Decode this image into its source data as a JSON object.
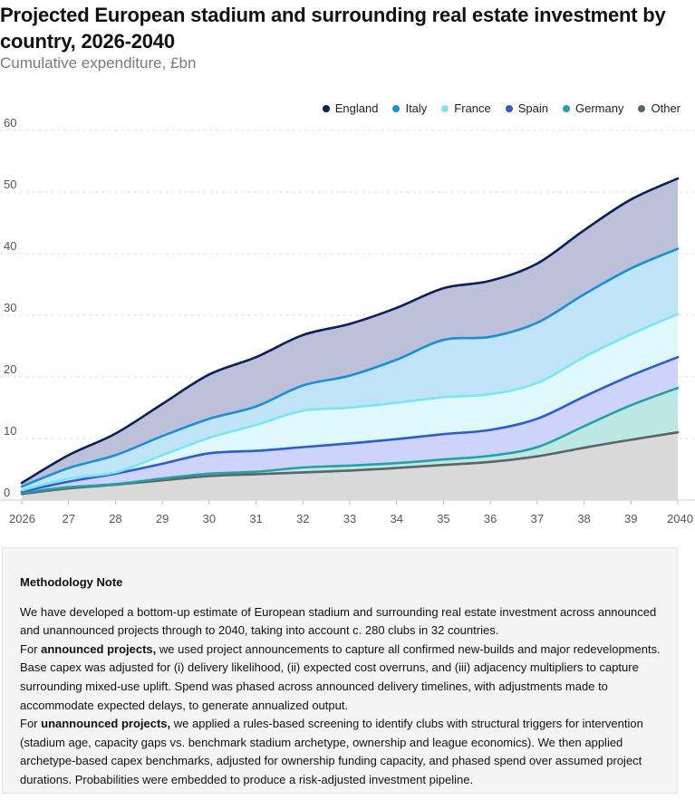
{
  "chart_data": {
    "type": "area",
    "title": "Projected European stadium and surrounding real estate investment by country, 2026-2040",
    "subtitle": "Cumulative expenditure, £bn",
    "x": [
      "2026",
      "27",
      "28",
      "29",
      "30",
      "31",
      "32",
      "33",
      "34",
      "35",
      "36",
      "37",
      "38",
      "39",
      "2040"
    ],
    "yticks": [
      "0",
      "10",
      "20",
      "30",
      "40",
      "50",
      "60"
    ],
    "ylim": [
      0,
      60
    ],
    "stacked_cumulative_top_values": true,
    "grid": true,
    "legend_position": "top-right",
    "series": [
      {
        "name": "England",
        "color": "#0d1e5c",
        "fill": "#bcc1d9",
        "values": [
          2.8,
          7.3,
          10.8,
          15.6,
          20.4,
          23.2,
          26.8,
          28.6,
          31.2,
          34.4,
          35.6,
          38.4,
          43.8,
          48.8,
          52.2
        ]
      },
      {
        "name": "Italy",
        "color": "#1b8fd6",
        "fill": "#bfe4f8",
        "values": [
          2.2,
          5.2,
          7.3,
          10.4,
          13.2,
          15.2,
          18.6,
          20.2,
          22.8,
          26.0,
          26.5,
          28.8,
          33.4,
          37.6,
          40.8
        ]
      },
      {
        "name": "France",
        "color": "#7ae6ee",
        "fill": "#dff8fb",
        "values": [
          1.6,
          3.5,
          4.5,
          7.3,
          10.1,
          12.2,
          14.5,
          15.0,
          15.8,
          16.7,
          17.2,
          19.0,
          23.2,
          26.9,
          30.2
        ]
      },
      {
        "name": "Spain",
        "color": "#2a5bdc",
        "fill": "#cdd3fb",
        "values": [
          1.4,
          3.0,
          4.3,
          5.9,
          7.6,
          8.0,
          8.6,
          9.2,
          9.9,
          10.7,
          11.4,
          13.2,
          16.8,
          20.2,
          23.2
        ]
      },
      {
        "name": "Germany",
        "color": "#20a3a3",
        "fill": "#bce7e3",
        "values": [
          1.2,
          2.1,
          2.6,
          3.5,
          4.3,
          4.6,
          5.3,
          5.6,
          6.0,
          6.6,
          7.2,
          8.6,
          12.0,
          15.4,
          18.2
        ]
      },
      {
        "name": "Other",
        "color": "#5d6466",
        "fill": "#d9d9d9",
        "values": [
          1.0,
          1.9,
          2.5,
          3.2,
          3.9,
          4.2,
          4.5,
          4.8,
          5.2,
          5.7,
          6.2,
          7.1,
          8.5,
          9.8,
          11.0
        ]
      }
    ]
  },
  "legend": [
    "England",
    "Italy",
    "France",
    "Spain",
    "Germany",
    "Other"
  ],
  "note": {
    "title": "Methodology Note",
    "p1": "We have developed a bottom-up estimate of European stadium and surrounding real estate investment across announced and unannounced projects through to 2040, taking into account c. 280 clubs in 32 countries.",
    "p2_prefix": "For ",
    "p2_bold": "announced projects,",
    "p2_rest": " we used project announcements to capture all confirmed new-builds and major redevelopments. Base capex was adjusted for (i) delivery likelihood, (ii) expected cost overruns, and (iii) adjacency multipliers to capture surrounding mixed-use uplift. Spend was phased across announced delivery timelines, with adjustments made to accommodate expected delays, to generate annualized output.",
    "p3_prefix": "For ",
    "p3_bold": "unannounced projects,",
    "p3_rest": " we applied a rules-based screening to identify clubs with structural triggers for intervention (stadium age, capacity gaps vs. benchmark stadium archetype, ownership and league economics). We then applied archetype-based capex benchmarks, adjusted for ownership funding capacity, and phased spend over assumed project durations. Probabilities were embedded to produce a risk-adjusted investment pipeline."
  }
}
